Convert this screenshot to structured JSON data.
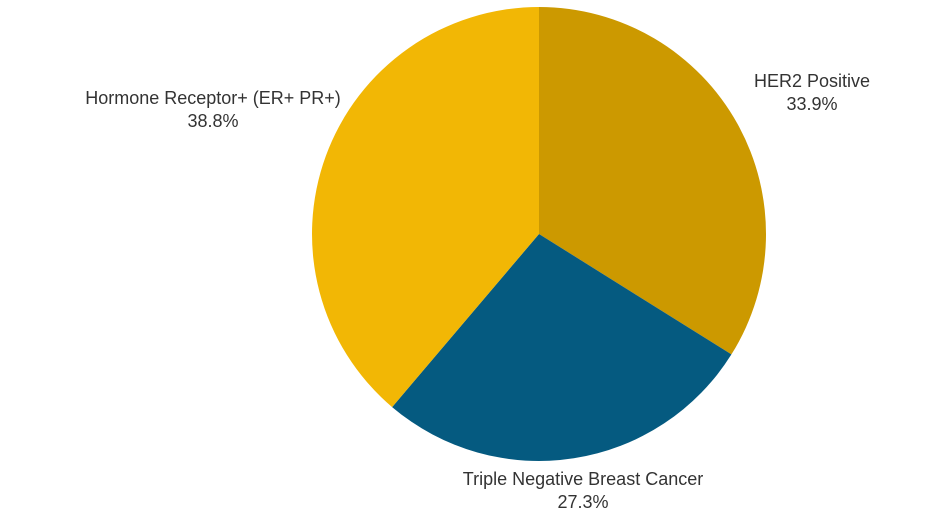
{
  "chart_data": {
    "type": "pie",
    "title": "",
    "background": "#FFFFFF",
    "text_color": "#333333",
    "label_font_size_px": 18,
    "rotation": "clockwise-from-12-oclock",
    "labels_position": "outside",
    "slices": [
      {
        "label": "HER2 Positive",
        "value_pct": 33.9,
        "pct_label": "33.9%",
        "color": "#CC9900"
      },
      {
        "label": "Triple Negative Breast Cancer",
        "value_pct": 27.3,
        "pct_label": "27.3%",
        "color": "#055A80"
      },
      {
        "label": "Hormone Receptor+ (ER+ PR+)",
        "value_pct": 38.8,
        "pct_label": "38.8%",
        "color": "#F2B705"
      }
    ]
  }
}
